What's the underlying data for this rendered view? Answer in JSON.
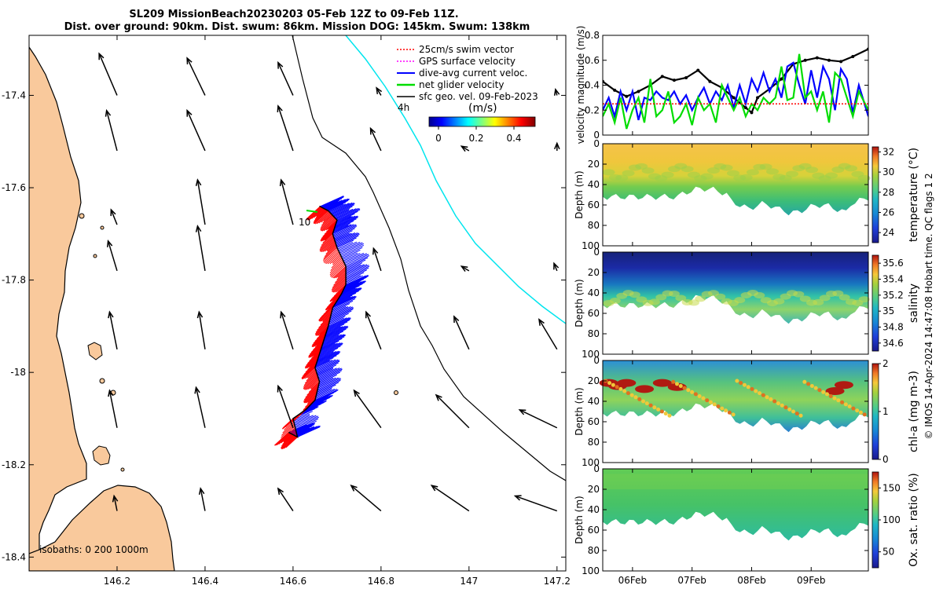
{
  "title": {
    "line1": "SL209 MissionBeach20230203 05-Feb 12Z to 09-Feb 11Z.",
    "line2": "Dist. over ground: 90km. Dist. swum: 86km. Mission DOG: 145km. Swum: 138km"
  },
  "colors": {
    "land": "#f9c99c",
    "swim_vector": "#ff0000",
    "gps_velocity": "#ff00ff",
    "current": "#0000ff",
    "net_glider": "#00dd00",
    "geo_vel": "#000000",
    "shelf_line": "#00e5ee"
  },
  "chart_data": [
    {
      "type": "map",
      "name": "track-map",
      "xlim": [
        146.0,
        147.22
      ],
      "ylim": [
        -18.43,
        -17.27
      ],
      "x_ticks": [
        146.2,
        146.4,
        146.6,
        146.8,
        147,
        147.2
      ],
      "x_tick_labels": [
        "146.2",
        "146.4",
        "146.6",
        "146.8",
        "147",
        "147.2"
      ],
      "y_ticks": [
        -17.4,
        -17.6,
        -17.8,
        -18,
        -18.2,
        -18.4
      ],
      "y_tick_labels": [
        "-17.4",
        "-17.6",
        "-17.8",
        "-18",
        "-18.2",
        "-18.4"
      ],
      "legend": [
        {
          "label": "25cm/s swim vector",
          "color": "#ff0000",
          "style": "dotted"
        },
        {
          "label": "GPS surface velocity",
          "color": "#ff00ff",
          "style": "dotted"
        },
        {
          "label": "dive-avg current veloc.",
          "color": "#0000ff",
          "style": "solid"
        },
        {
          "label": "net glider velocity",
          "color": "#00dd00",
          "style": "solid"
        },
        {
          "label": "sfc geo. vel. 09-Feb-2023",
          "color": "#000000",
          "style": "solid"
        }
      ],
      "legend_note": "4h",
      "colorbar": {
        "label": "(m/s)",
        "ticks": [
          "0",
          "0.2",
          "0.4"
        ],
        "range": [
          0,
          0.5
        ]
      },
      "track_label": "10",
      "isobath_label": "isobaths: 0  200  1000m",
      "glider_track": [
        [
          146.59,
          -18.13
        ],
        [
          146.61,
          -18.14
        ],
        [
          146.6,
          -18.1
        ],
        [
          146.63,
          -18.08
        ],
        [
          146.65,
          -18.06
        ],
        [
          146.66,
          -18.02
        ],
        [
          146.65,
          -17.99
        ],
        [
          146.66,
          -17.96
        ],
        [
          146.67,
          -17.93
        ],
        [
          146.68,
          -17.9
        ],
        [
          146.69,
          -17.86
        ],
        [
          146.71,
          -17.83
        ],
        [
          146.72,
          -17.81
        ],
        [
          146.72,
          -17.77
        ],
        [
          146.7,
          -17.73
        ],
        [
          146.69,
          -17.7
        ],
        [
          146.7,
          -17.67
        ],
        [
          146.68,
          -17.65
        ],
        [
          146.66,
          -17.64
        ]
      ],
      "geo_arrows": [
        {
          "lon": 146.2,
          "lat": -17.4,
          "u": -0.12,
          "v": 0.28
        },
        {
          "lon": 146.4,
          "lat": -17.4,
          "u": -0.12,
          "v": 0.25
        },
        {
          "lon": 146.6,
          "lat": -17.4,
          "u": -0.1,
          "v": 0.22
        },
        {
          "lon": 146.8,
          "lat": -17.4,
          "u": -0.03,
          "v": 0.05
        },
        {
          "lon": 147.2,
          "lat": -17.4,
          "u": -0.01,
          "v": 0.04
        },
        {
          "lon": 146.2,
          "lat": -17.52,
          "u": -0.07,
          "v": 0.27
        },
        {
          "lon": 146.4,
          "lat": -17.52,
          "u": -0.12,
          "v": 0.27
        },
        {
          "lon": 146.6,
          "lat": -17.52,
          "u": -0.1,
          "v": 0.3
        },
        {
          "lon": 146.8,
          "lat": -17.52,
          "u": -0.07,
          "v": 0.15
        },
        {
          "lon": 147,
          "lat": -17.52,
          "u": -0.05,
          "v": 0.03
        },
        {
          "lon": 147.2,
          "lat": -17.52,
          "u": 0.0,
          "v": 0.05
        },
        {
          "lon": 146.2,
          "lat": -17.68,
          "u": -0.04,
          "v": 0.1
        },
        {
          "lon": 146.4,
          "lat": -17.68,
          "u": -0.05,
          "v": 0.3
        },
        {
          "lon": 146.6,
          "lat": -17.68,
          "u": -0.08,
          "v": 0.3
        },
        {
          "lon": 146.2,
          "lat": -17.78,
          "u": -0.06,
          "v": 0.2
        },
        {
          "lon": 146.4,
          "lat": -17.78,
          "u": -0.05,
          "v": 0.3
        },
        {
          "lon": 146.8,
          "lat": -17.78,
          "u": -0.05,
          "v": 0.15
        },
        {
          "lon": 147,
          "lat": -17.78,
          "u": -0.05,
          "v": 0.03
        },
        {
          "lon": 147.2,
          "lat": -17.78,
          "u": -0.02,
          "v": 0.05
        },
        {
          "lon": 146.2,
          "lat": -17.95,
          "u": -0.05,
          "v": 0.25
        },
        {
          "lon": 146.4,
          "lat": -17.95,
          "u": -0.04,
          "v": 0.25
        },
        {
          "lon": 146.6,
          "lat": -17.95,
          "u": -0.08,
          "v": 0.25
        },
        {
          "lon": 146.8,
          "lat": -17.95,
          "u": -0.1,
          "v": 0.25
        },
        {
          "lon": 147,
          "lat": -17.95,
          "u": -0.1,
          "v": 0.22
        },
        {
          "lon": 147.2,
          "lat": -17.95,
          "u": -0.12,
          "v": 0.2
        },
        {
          "lon": 146.2,
          "lat": -18.12,
          "u": -0.05,
          "v": 0.25
        },
        {
          "lon": 146.4,
          "lat": -18.12,
          "u": -0.06,
          "v": 0.27
        },
        {
          "lon": 146.6,
          "lat": -18.12,
          "u": -0.1,
          "v": 0.28
        },
        {
          "lon": 146.8,
          "lat": -18.12,
          "u": -0.18,
          "v": 0.25
        },
        {
          "lon": 147,
          "lat": -18.12,
          "u": -0.22,
          "v": 0.22
        },
        {
          "lon": 147.2,
          "lat": -18.12,
          "u": -0.25,
          "v": 0.12
        },
        {
          "lon": 146.2,
          "lat": -18.3,
          "u": -0.02,
          "v": 0.1
        },
        {
          "lon": 146.4,
          "lat": -18.3,
          "u": -0.03,
          "v": 0.15
        },
        {
          "lon": 146.6,
          "lat": -18.3,
          "u": -0.1,
          "v": 0.15
        },
        {
          "lon": 146.8,
          "lat": -18.3,
          "u": -0.2,
          "v": 0.17
        },
        {
          "lon": 147,
          "lat": -18.3,
          "u": -0.25,
          "v": 0.17
        },
        {
          "lon": 147.2,
          "lat": -18.3,
          "u": -0.28,
          "v": 0.1
        }
      ]
    },
    {
      "type": "line",
      "name": "velocity-magnitude",
      "ylabel": "velocity magnitude (m/s)",
      "ylim": [
        0,
        0.8
      ],
      "y_ticks": [
        "0",
        "0.2",
        "0.4",
        "0.6",
        "0.8"
      ],
      "xlim": [
        5.5,
        9.96
      ],
      "series": [
        {
          "name": "sfc geo. vel.",
          "color": "#000000",
          "x": [
            5.5,
            5.7,
            5.9,
            6.1,
            6.3,
            6.5,
            6.7,
            6.9,
            7.1,
            7.3,
            7.5,
            7.7,
            7.9,
            8.0,
            8.1,
            8.3,
            8.5,
            8.7,
            8.9,
            9.1,
            9.3,
            9.5,
            9.7,
            9.96
          ],
          "values": [
            0.43,
            0.36,
            0.31,
            0.35,
            0.4,
            0.47,
            0.44,
            0.46,
            0.52,
            0.43,
            0.38,
            0.3,
            0.22,
            0.18,
            0.3,
            0.37,
            0.45,
            0.57,
            0.6,
            0.62,
            0.6,
            0.59,
            0.63,
            0.69
          ]
        },
        {
          "name": "dive-avg current veloc.",
          "color": "#0000ff",
          "x": [
            5.5,
            5.6,
            5.7,
            5.8,
            5.9,
            6.0,
            6.1,
            6.2,
            6.3,
            6.4,
            6.5,
            6.6,
            6.7,
            6.8,
            6.9,
            7.0,
            7.1,
            7.2,
            7.3,
            7.4,
            7.5,
            7.6,
            7.7,
            7.8,
            7.9,
            8.0,
            8.1,
            8.2,
            8.3,
            8.4,
            8.5,
            8.6,
            8.7,
            8.8,
            8.9,
            9.0,
            9.1,
            9.2,
            9.3,
            9.4,
            9.5,
            9.6,
            9.7,
            9.8,
            9.96
          ],
          "values": [
            0.2,
            0.3,
            0.15,
            0.35,
            0.2,
            0.35,
            0.12,
            0.3,
            0.28,
            0.35,
            0.3,
            0.28,
            0.35,
            0.25,
            0.32,
            0.2,
            0.3,
            0.38,
            0.25,
            0.35,
            0.28,
            0.4,
            0.22,
            0.4,
            0.25,
            0.45,
            0.35,
            0.5,
            0.35,
            0.45,
            0.3,
            0.55,
            0.58,
            0.4,
            0.25,
            0.52,
            0.3,
            0.55,
            0.45,
            0.2,
            0.53,
            0.45,
            0.18,
            0.4,
            0.15
          ]
        },
        {
          "name": "net glider velocity",
          "color": "#00dd00",
          "x": [
            5.5,
            5.6,
            5.7,
            5.8,
            5.9,
            6.0,
            6.1,
            6.2,
            6.3,
            6.4,
            6.5,
            6.6,
            6.7,
            6.8,
            6.9,
            7.0,
            7.1,
            7.2,
            7.3,
            7.4,
            7.5,
            7.6,
            7.7,
            7.8,
            7.9,
            8.0,
            8.1,
            8.2,
            8.3,
            8.4,
            8.5,
            8.6,
            8.7,
            8.8,
            8.9,
            9.0,
            9.1,
            9.2,
            9.3,
            9.4,
            9.5,
            9.6,
            9.7,
            9.8,
            9.96
          ],
          "values": [
            0.15,
            0.25,
            0.1,
            0.3,
            0.05,
            0.2,
            0.3,
            0.1,
            0.45,
            0.15,
            0.2,
            0.35,
            0.1,
            0.15,
            0.25,
            0.08,
            0.3,
            0.2,
            0.25,
            0.1,
            0.4,
            0.3,
            0.2,
            0.3,
            0.15,
            0.25,
            0.2,
            0.3,
            0.25,
            0.3,
            0.55,
            0.28,
            0.3,
            0.65,
            0.3,
            0.35,
            0.2,
            0.35,
            0.1,
            0.5,
            0.45,
            0.3,
            0.15,
            0.35,
            0.2
          ]
        },
        {
          "name": "25cm/s swim vector",
          "color": "#ff0000",
          "style": "dotted",
          "x": [
            5.5,
            9.96
          ],
          "values": [
            0.25,
            0.25
          ]
        }
      ]
    },
    {
      "type": "heatmap",
      "name": "temperature-section",
      "ylabel": "Depth (m)",
      "colorbar_label": "temperature (°C)",
      "colorbar_ticks": [
        "24",
        "26",
        "28",
        "30",
        "32"
      ],
      "colorbar_range": [
        23,
        32.5
      ],
      "colormap": "parula"
    },
    {
      "type": "heatmap",
      "name": "salinity-section",
      "ylabel": "Depth (m)",
      "colorbar_label": "salinity",
      "colorbar_ticks": [
        "34.6",
        "34.8",
        "35",
        "35.2",
        "35.4",
        "35.6"
      ],
      "colorbar_range": [
        34.5,
        35.7
      ],
      "colormap": "parula"
    },
    {
      "type": "heatmap",
      "name": "chla-section",
      "ylabel": "Depth (m)",
      "colorbar_label": "chl-a (mg m-3)",
      "colorbar_ticks": [
        "0",
        "1",
        "2"
      ],
      "colorbar_range": [
        0,
        2
      ],
      "colormap": "parula"
    },
    {
      "type": "heatmap",
      "name": "oxygen-section",
      "ylabel": "Depth (m)",
      "colorbar_label": "Ox. sat. ratio (%)",
      "colorbar_ticks": [
        "50",
        "100",
        "150"
      ],
      "colorbar_range": [
        25,
        175
      ],
      "colormap": "parula"
    }
  ],
  "sections": {
    "depth_ticks": [
      "0",
      "20",
      "40",
      "60",
      "80",
      "100"
    ],
    "date_ticks": [
      "06Feb",
      "07Feb",
      "08Feb",
      "09Feb"
    ],
    "xlim": [
      5.5,
      9.96
    ]
  },
  "credit": "© IMOS 14-Apr-2024 14:47:08 Hobart time. QC flags 1  2"
}
